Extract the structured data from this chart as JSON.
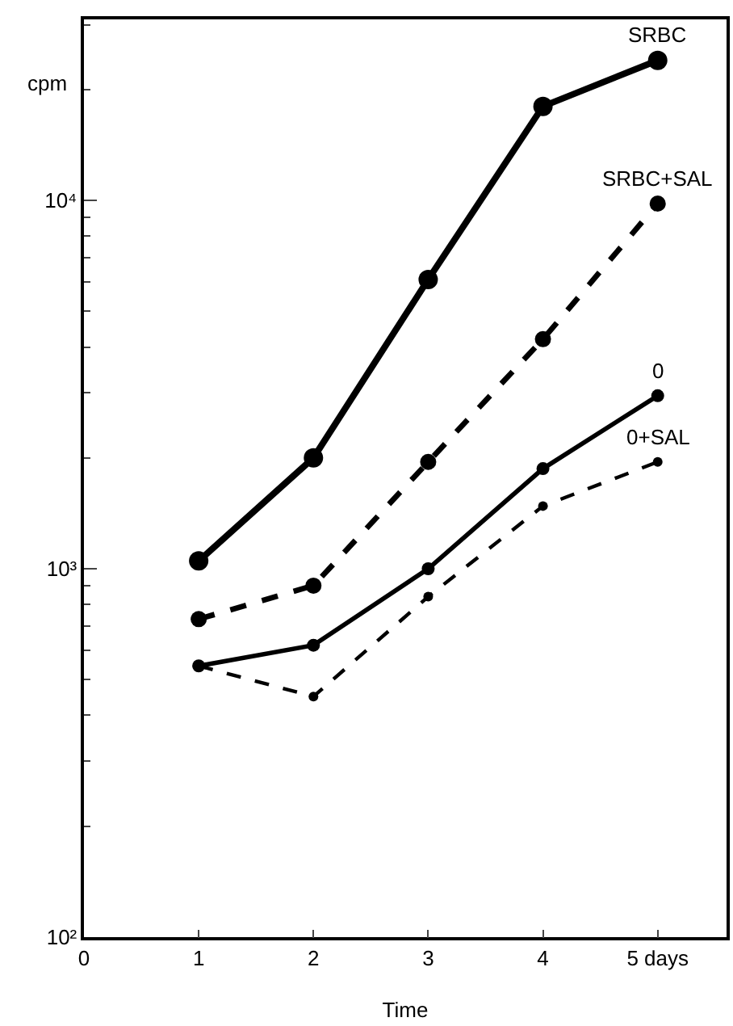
{
  "chart_data": {
    "type": "line",
    "xlabel": "Time",
    "ylabel": "cpm",
    "x": [
      1,
      2,
      3,
      4,
      5
    ],
    "series": [
      {
        "name": "SRBC",
        "color": "#000000",
        "line_style": "solid",
        "values": [
          1050,
          2000,
          6100,
          18000,
          24000
        ]
      },
      {
        "name": "SRBC+SAL",
        "color": "#000000",
        "line_style": "dashed",
        "values": [
          730,
          900,
          1950,
          4200,
          9800
        ]
      },
      {
        "name": "0",
        "color": "#000000",
        "line_style": "solid",
        "values": [
          545,
          620,
          1000,
          1870,
          2950
        ]
      },
      {
        "name": "0+SAL",
        "color": "#000000",
        "line_style": "dashed",
        "values": [
          545,
          450,
          840,
          1480,
          1950
        ]
      }
    ],
    "marker": "circle",
    "log": "y",
    "legend": false,
    "grid": false,
    "xlim": [
      0,
      5.6
    ],
    "xticks": [
      0,
      1,
      2,
      3,
      4,
      {
        "value": 5,
        "label": "5 days"
      }
    ],
    "ylim": [
      100,
      31000
    ],
    "yticks": [
      {
        "value": 100,
        "label": "10²"
      },
      {
        "value": 1000,
        "label": "10³"
      },
      {
        "value": 10000,
        "label": "10⁴"
      }
    ]
  }
}
